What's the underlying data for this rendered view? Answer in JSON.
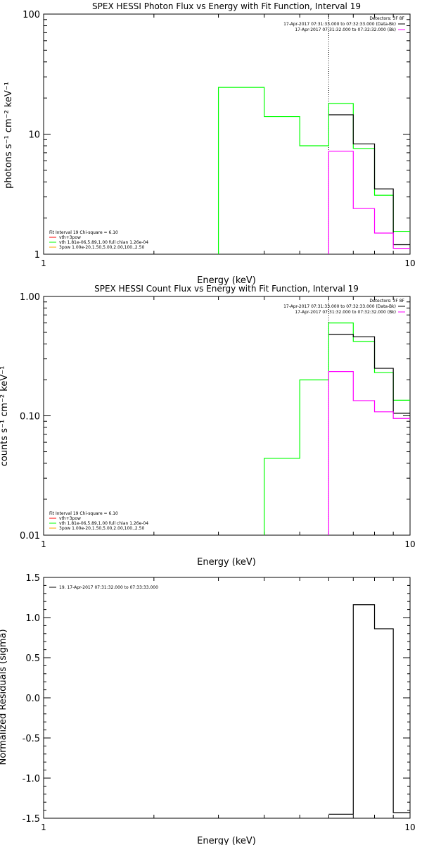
{
  "colors": {
    "black": "#000000",
    "green": "#00ff00",
    "magenta": "#ff00ff",
    "red": "#ff0000",
    "orange": "#ffa500"
  },
  "chart_data": [
    {
      "type": "line",
      "step": true,
      "title": "SPEX HESSI Photon Flux vs Energy with Fit Function, Interval 19",
      "xlabel": "Energy (keV)",
      "ylabel": "photons s⁻¹ cm⁻² keV⁻¹",
      "xscale": "log",
      "yscale": "log",
      "xlim": [
        1,
        10
      ],
      "ylim": [
        1,
        100
      ],
      "xticks": [
        {
          "v": 1,
          "label": "1"
        },
        {
          "v": 10,
          "label": "10"
        }
      ],
      "yticks": [
        {
          "v": 1,
          "label": "1"
        },
        {
          "v": 10,
          "label": "10"
        },
        {
          "v": 100,
          "label": "100"
        }
      ],
      "vline": 6.0,
      "legend_right": {
        "title": "Detectors: 3F 8F",
        "entries": [
          {
            "text": "17-Apr-2017 07:31:33.000 to 07:32:33.000 (Data-Bk)",
            "color": "#000000"
          },
          {
            "text": "17-Apr-2017 07:31:32.000 to 07:32:32.000 (Bk)",
            "color": "#ff00ff"
          }
        ]
      },
      "legend_left": {
        "title": "Fit Interval 19   Chi-square = 6.10",
        "entries": [
          {
            "text": "vth+3pow",
            "color": "#ff0000"
          },
          {
            "text": "vth 1.81e-06,5.89,1.00  full chian 1.26e-04",
            "color": "#00ff00"
          },
          {
            "text": "3pow 1.00e-20,1.50,5.00,2.00,100.,2.50",
            "color": "#ffa500"
          }
        ]
      },
      "series": [
        {
          "color": "#00ff00",
          "edges": [
            3,
            4,
            5,
            6,
            7,
            8,
            9,
            10
          ],
          "values": [
            24.5,
            14,
            8,
            18,
            7.6,
            3.1,
            1.55
          ],
          "drop_first": true
        },
        {
          "color": "#000000",
          "edges": [
            6,
            7,
            8,
            9,
            10
          ],
          "values": [
            14.5,
            8.3,
            3.5,
            1.2
          ],
          "drop_first": false
        },
        {
          "color": "#ff00ff",
          "edges": [
            6,
            7,
            8,
            9,
            10
          ],
          "values": [
            7.2,
            2.4,
            1.5,
            1.12
          ],
          "drop_first": true
        }
      ]
    },
    {
      "type": "line",
      "step": true,
      "title": "SPEX HESSI Count Flux vs Energy with Fit Function, Interval 19",
      "xlabel": "Energy (keV)",
      "ylabel": "counts s⁻¹ cm⁻² keV⁻¹",
      "xscale": "log",
      "yscale": "log",
      "xlim": [
        1,
        10
      ],
      "ylim": [
        0.01,
        1
      ],
      "xticks": [
        {
          "v": 1,
          "label": "1"
        },
        {
          "v": 10,
          "label": "10"
        }
      ],
      "yticks": [
        {
          "v": 0.01,
          "label": "0.01"
        },
        {
          "v": 0.1,
          "label": "0.10"
        },
        {
          "v": 1,
          "label": "1.00"
        }
      ],
      "vline": 6.0,
      "legend_right": {
        "title": "Detectors: 3F 8F",
        "entries": [
          {
            "text": "17-Apr-2017 07:31:33.000 to 07:32:33.000 (Data-Bk)",
            "color": "#000000"
          },
          {
            "text": "17-Apr-2017 07:31:32.000 to 07:32:32.000 (Bk)",
            "color": "#ff00ff"
          }
        ]
      },
      "legend_left": {
        "title": "Fit Interval 19   Chi-square = 6.10",
        "entries": [
          {
            "text": "vth+3pow",
            "color": "#ff0000"
          },
          {
            "text": "vth 1.81e-06,5.89,1.00  full chian 1.26e-04",
            "color": "#00ff00"
          },
          {
            "text": "3pow 1.00e-20,1.50,5.00,2.00,100.,2.50",
            "color": "#ffa500"
          }
        ]
      },
      "series": [
        {
          "color": "#00ff00",
          "edges": [
            4,
            5,
            6,
            7,
            8,
            9,
            10
          ],
          "values": [
            0.044,
            0.2,
            0.6,
            0.42,
            0.23,
            0.135
          ],
          "drop_first": true
        },
        {
          "color": "#000000",
          "edges": [
            6,
            7,
            8,
            9,
            10
          ],
          "values": [
            0.48,
            0.46,
            0.25,
            0.105
          ],
          "drop_first": false
        },
        {
          "color": "#ff00ff",
          "edges": [
            6,
            7,
            8,
            9,
            10
          ],
          "values": [
            0.235,
            0.134,
            0.108,
            0.095
          ],
          "drop_first": true
        }
      ]
    },
    {
      "type": "line",
      "step": true,
      "title": "",
      "xlabel": "Energy (keV)",
      "ylabel": "Normalized Residuals (sigma)",
      "xscale": "log",
      "yscale": "linear",
      "xlim": [
        1,
        10
      ],
      "ylim": [
        -1.5,
        1.5
      ],
      "xticks": [
        {
          "v": 1,
          "label": "1"
        },
        {
          "v": 10,
          "label": "10"
        }
      ],
      "yticks": [
        {
          "v": -1.5,
          "label": "-1.5"
        },
        {
          "v": -1.0,
          "label": "-1.0"
        },
        {
          "v": -0.5,
          "label": "-0.5"
        },
        {
          "v": 0.0,
          "label": "0.0"
        },
        {
          "v": 0.5,
          "label": "0.5"
        },
        {
          "v": 1.0,
          "label": "1.0"
        },
        {
          "v": 1.5,
          "label": "1.5"
        }
      ],
      "legend_left": {
        "title": "",
        "entries": [
          {
            "text": "19. 17-Apr-2017 07:31:32.000 to 07:33:33.000",
            "color": "#000000"
          }
        ]
      },
      "series": [
        {
          "color": "#000000",
          "edges": [
            6,
            7,
            8,
            9,
            10
          ],
          "values": [
            -1.45,
            1.16,
            0.86,
            -1.43
          ],
          "drop_first": false
        }
      ]
    }
  ]
}
